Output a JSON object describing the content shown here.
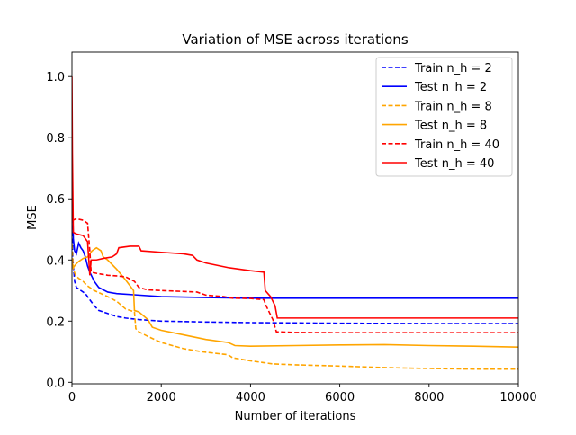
{
  "chart_data": {
    "type": "line",
    "title": "Variation of MSE across iterations",
    "xlabel": "Number of iterations",
    "ylabel": "MSE",
    "xlim": [
      0,
      10000
    ],
    "ylim": [
      -0.005,
      1.08
    ],
    "x_ticks": [
      0,
      2000,
      4000,
      6000,
      8000,
      10000
    ],
    "y_ticks": [
      0.0,
      0.2,
      0.4,
      0.6,
      0.8,
      1.0
    ],
    "x_tick_labels": [
      "0",
      "2000",
      "4000",
      "6000",
      "8000",
      "10000"
    ],
    "y_tick_labels": [
      "0.0",
      "0.2",
      "0.4",
      "0.6",
      "0.8",
      "1.0"
    ],
    "grid": false,
    "legend_position": "top-right",
    "series": [
      {
        "name": "Train n_h = 2",
        "color": "#0000ff",
        "style": "dashed",
        "points": [
          [
            0,
            0.58
          ],
          [
            20,
            0.4
          ],
          [
            60,
            0.33
          ],
          [
            100,
            0.31
          ],
          [
            150,
            0.305
          ],
          [
            200,
            0.3
          ],
          [
            300,
            0.29
          ],
          [
            400,
            0.27
          ],
          [
            500,
            0.25
          ],
          [
            600,
            0.235
          ],
          [
            800,
            0.225
          ],
          [
            1000,
            0.215
          ],
          [
            1200,
            0.21
          ],
          [
            1500,
            0.205
          ],
          [
            2000,
            0.2
          ],
          [
            3000,
            0.197
          ],
          [
            4000,
            0.195
          ],
          [
            5000,
            0.194
          ],
          [
            6000,
            0.193
          ],
          [
            8000,
            0.192
          ],
          [
            10000,
            0.192
          ]
        ]
      },
      {
        "name": "Test n_h = 2",
        "color": "#0000ff",
        "style": "solid",
        "points": [
          [
            0,
            0.7
          ],
          [
            30,
            0.47
          ],
          [
            60,
            0.43
          ],
          [
            100,
            0.42
          ],
          [
            150,
            0.455
          ],
          [
            200,
            0.44
          ],
          [
            250,
            0.43
          ],
          [
            300,
            0.41
          ],
          [
            350,
            0.38
          ],
          [
            400,
            0.36
          ],
          [
            500,
            0.33
          ],
          [
            600,
            0.31
          ],
          [
            800,
            0.295
          ],
          [
            1000,
            0.29
          ],
          [
            1500,
            0.285
          ],
          [
            2000,
            0.28
          ],
          [
            3000,
            0.277
          ],
          [
            4000,
            0.275
          ],
          [
            6000,
            0.275
          ],
          [
            8000,
            0.275
          ],
          [
            10000,
            0.275
          ]
        ]
      },
      {
        "name": "Train n_h = 8",
        "color": "#ffa500",
        "style": "dashed",
        "points": [
          [
            0,
            0.45
          ],
          [
            30,
            0.37
          ],
          [
            80,
            0.35
          ],
          [
            150,
            0.34
          ],
          [
            250,
            0.33
          ],
          [
            350,
            0.315
          ],
          [
            500,
            0.3
          ],
          [
            800,
            0.28
          ],
          [
            1000,
            0.265
          ],
          [
            1200,
            0.24
          ],
          [
            1400,
            0.23
          ],
          [
            1430,
            0.175
          ],
          [
            1500,
            0.165
          ],
          [
            1700,
            0.15
          ],
          [
            2000,
            0.13
          ],
          [
            2500,
            0.11
          ],
          [
            2900,
            0.1
          ],
          [
            3500,
            0.09
          ],
          [
            3600,
            0.08
          ],
          [
            4000,
            0.07
          ],
          [
            4500,
            0.06
          ],
          [
            5000,
            0.057
          ],
          [
            6000,
            0.053
          ],
          [
            7000,
            0.048
          ],
          [
            8000,
            0.045
          ],
          [
            9000,
            0.043
          ],
          [
            10000,
            0.043
          ]
        ]
      },
      {
        "name": "Test n_h = 8",
        "color": "#ffa500",
        "style": "solid",
        "points": [
          [
            0,
            0.4
          ],
          [
            30,
            0.375
          ],
          [
            80,
            0.385
          ],
          [
            150,
            0.395
          ],
          [
            250,
            0.405
          ],
          [
            350,
            0.41
          ],
          [
            450,
            0.43
          ],
          [
            550,
            0.44
          ],
          [
            650,
            0.43
          ],
          [
            700,
            0.41
          ],
          [
            800,
            0.4
          ],
          [
            1000,
            0.37
          ],
          [
            1200,
            0.335
          ],
          [
            1380,
            0.3
          ],
          [
            1400,
            0.235
          ],
          [
            1500,
            0.23
          ],
          [
            1700,
            0.205
          ],
          [
            1800,
            0.18
          ],
          [
            2000,
            0.17
          ],
          [
            2500,
            0.155
          ],
          [
            3000,
            0.14
          ],
          [
            3500,
            0.13
          ],
          [
            3650,
            0.12
          ],
          [
            4000,
            0.118
          ],
          [
            5000,
            0.12
          ],
          [
            6000,
            0.122
          ],
          [
            7000,
            0.123
          ],
          [
            8000,
            0.12
          ],
          [
            9000,
            0.118
          ],
          [
            10000,
            0.115
          ]
        ]
      },
      {
        "name": "Train n_h = 40",
        "color": "#ff0000",
        "style": "dashed",
        "points": [
          [
            0,
            0.62
          ],
          [
            20,
            0.53
          ],
          [
            100,
            0.535
          ],
          [
            250,
            0.53
          ],
          [
            350,
            0.52
          ],
          [
            400,
            0.43
          ],
          [
            430,
            0.36
          ],
          [
            600,
            0.355
          ],
          [
            800,
            0.35
          ],
          [
            1000,
            0.348
          ],
          [
            1200,
            0.345
          ],
          [
            1400,
            0.33
          ],
          [
            1500,
            0.31
          ],
          [
            1700,
            0.302
          ],
          [
            2000,
            0.3
          ],
          [
            2500,
            0.297
          ],
          [
            2800,
            0.295
          ],
          [
            3000,
            0.285
          ],
          [
            3400,
            0.28
          ],
          [
            3600,
            0.275
          ],
          [
            4000,
            0.274
          ],
          [
            4300,
            0.27
          ],
          [
            4350,
            0.25
          ],
          [
            4500,
            0.205
          ],
          [
            4580,
            0.165
          ],
          [
            5000,
            0.163
          ],
          [
            6000,
            0.162
          ],
          [
            8000,
            0.162
          ],
          [
            10000,
            0.162
          ]
        ]
      },
      {
        "name": "Test n_h = 40",
        "color": "#ff0000",
        "style": "solid",
        "points": [
          [
            0,
            1.0
          ],
          [
            10,
            0.75
          ],
          [
            30,
            0.49
          ],
          [
            100,
            0.485
          ],
          [
            250,
            0.48
          ],
          [
            350,
            0.46
          ],
          [
            400,
            0.35
          ],
          [
            430,
            0.4
          ],
          [
            550,
            0.4
          ],
          [
            700,
            0.405
          ],
          [
            900,
            0.41
          ],
          [
            1000,
            0.42
          ],
          [
            1050,
            0.44
          ],
          [
            1300,
            0.445
          ],
          [
            1500,
            0.445
          ],
          [
            1550,
            0.43
          ],
          [
            2000,
            0.425
          ],
          [
            2500,
            0.42
          ],
          [
            2700,
            0.415
          ],
          [
            2800,
            0.4
          ],
          [
            3000,
            0.39
          ],
          [
            3500,
            0.375
          ],
          [
            4000,
            0.365
          ],
          [
            4300,
            0.36
          ],
          [
            4330,
            0.3
          ],
          [
            4450,
            0.28
          ],
          [
            4550,
            0.25
          ],
          [
            4600,
            0.21
          ],
          [
            5000,
            0.21
          ],
          [
            6000,
            0.21
          ],
          [
            8000,
            0.21
          ],
          [
            10000,
            0.21
          ]
        ]
      }
    ]
  }
}
